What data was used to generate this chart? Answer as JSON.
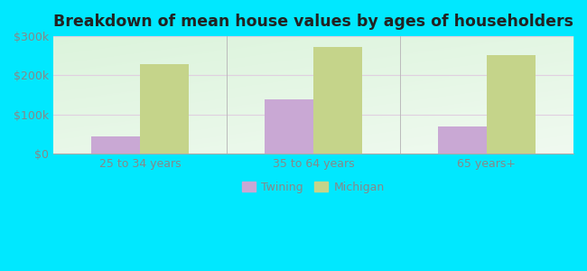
{
  "title": "Breakdown of mean house values by ages of householders",
  "categories": [
    "25 to 34 years",
    "35 to 64 years",
    "65 years+"
  ],
  "twining_values": [
    45000,
    140000,
    70000
  ],
  "michigan_values": [
    228000,
    272000,
    252000
  ],
  "twining_color": "#c9a8d4",
  "michigan_color": "#c5d48a",
  "background_outer": "#00e8ff",
  "background_inner": "#e8f5e2",
  "ylim": [
    0,
    300000
  ],
  "yticks": [
    0,
    100000,
    200000,
    300000
  ],
  "ytick_labels": [
    "$0",
    "$100k",
    "$200k",
    "$300k"
  ],
  "legend_labels": [
    "Twining",
    "Michigan"
  ],
  "bar_width": 0.28,
  "title_fontsize": 12.5,
  "tick_fontsize": 9,
  "legend_fontsize": 9,
  "tick_color": "#888888"
}
